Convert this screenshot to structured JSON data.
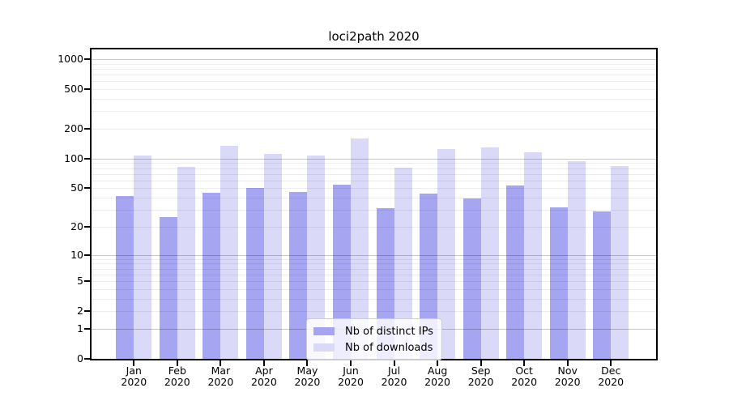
{
  "chart_data": {
    "type": "bar",
    "title": "loci2path 2020",
    "year": "2020",
    "categories": [
      "Jan",
      "Feb",
      "Mar",
      "Apr",
      "May",
      "Jun",
      "Jul",
      "Aug",
      "Sep",
      "Oct",
      "Nov",
      "Dec"
    ],
    "series": [
      {
        "name": "Nb of distinct IPs",
        "color": "#a5a5f2",
        "values": [
          42,
          25,
          45,
          50,
          46,
          54,
          31,
          44,
          39,
          53,
          32,
          29
        ]
      },
      {
        "name": "Nb of downloads",
        "color": "#dadaf8",
        "values": [
          107,
          83,
          134,
          111,
          108,
          160,
          81,
          125,
          130,
          116,
          94,
          84
        ]
      }
    ],
    "yticks": [
      0,
      1,
      2,
      5,
      10,
      20,
      50,
      100,
      200,
      500,
      1000
    ],
    "ylim": [
      0,
      1250
    ],
    "yscale": "log1p",
    "grid": "on",
    "legend_position": "lower center",
    "axis_color": "#000000",
    "background_color": "#ffffff"
  }
}
